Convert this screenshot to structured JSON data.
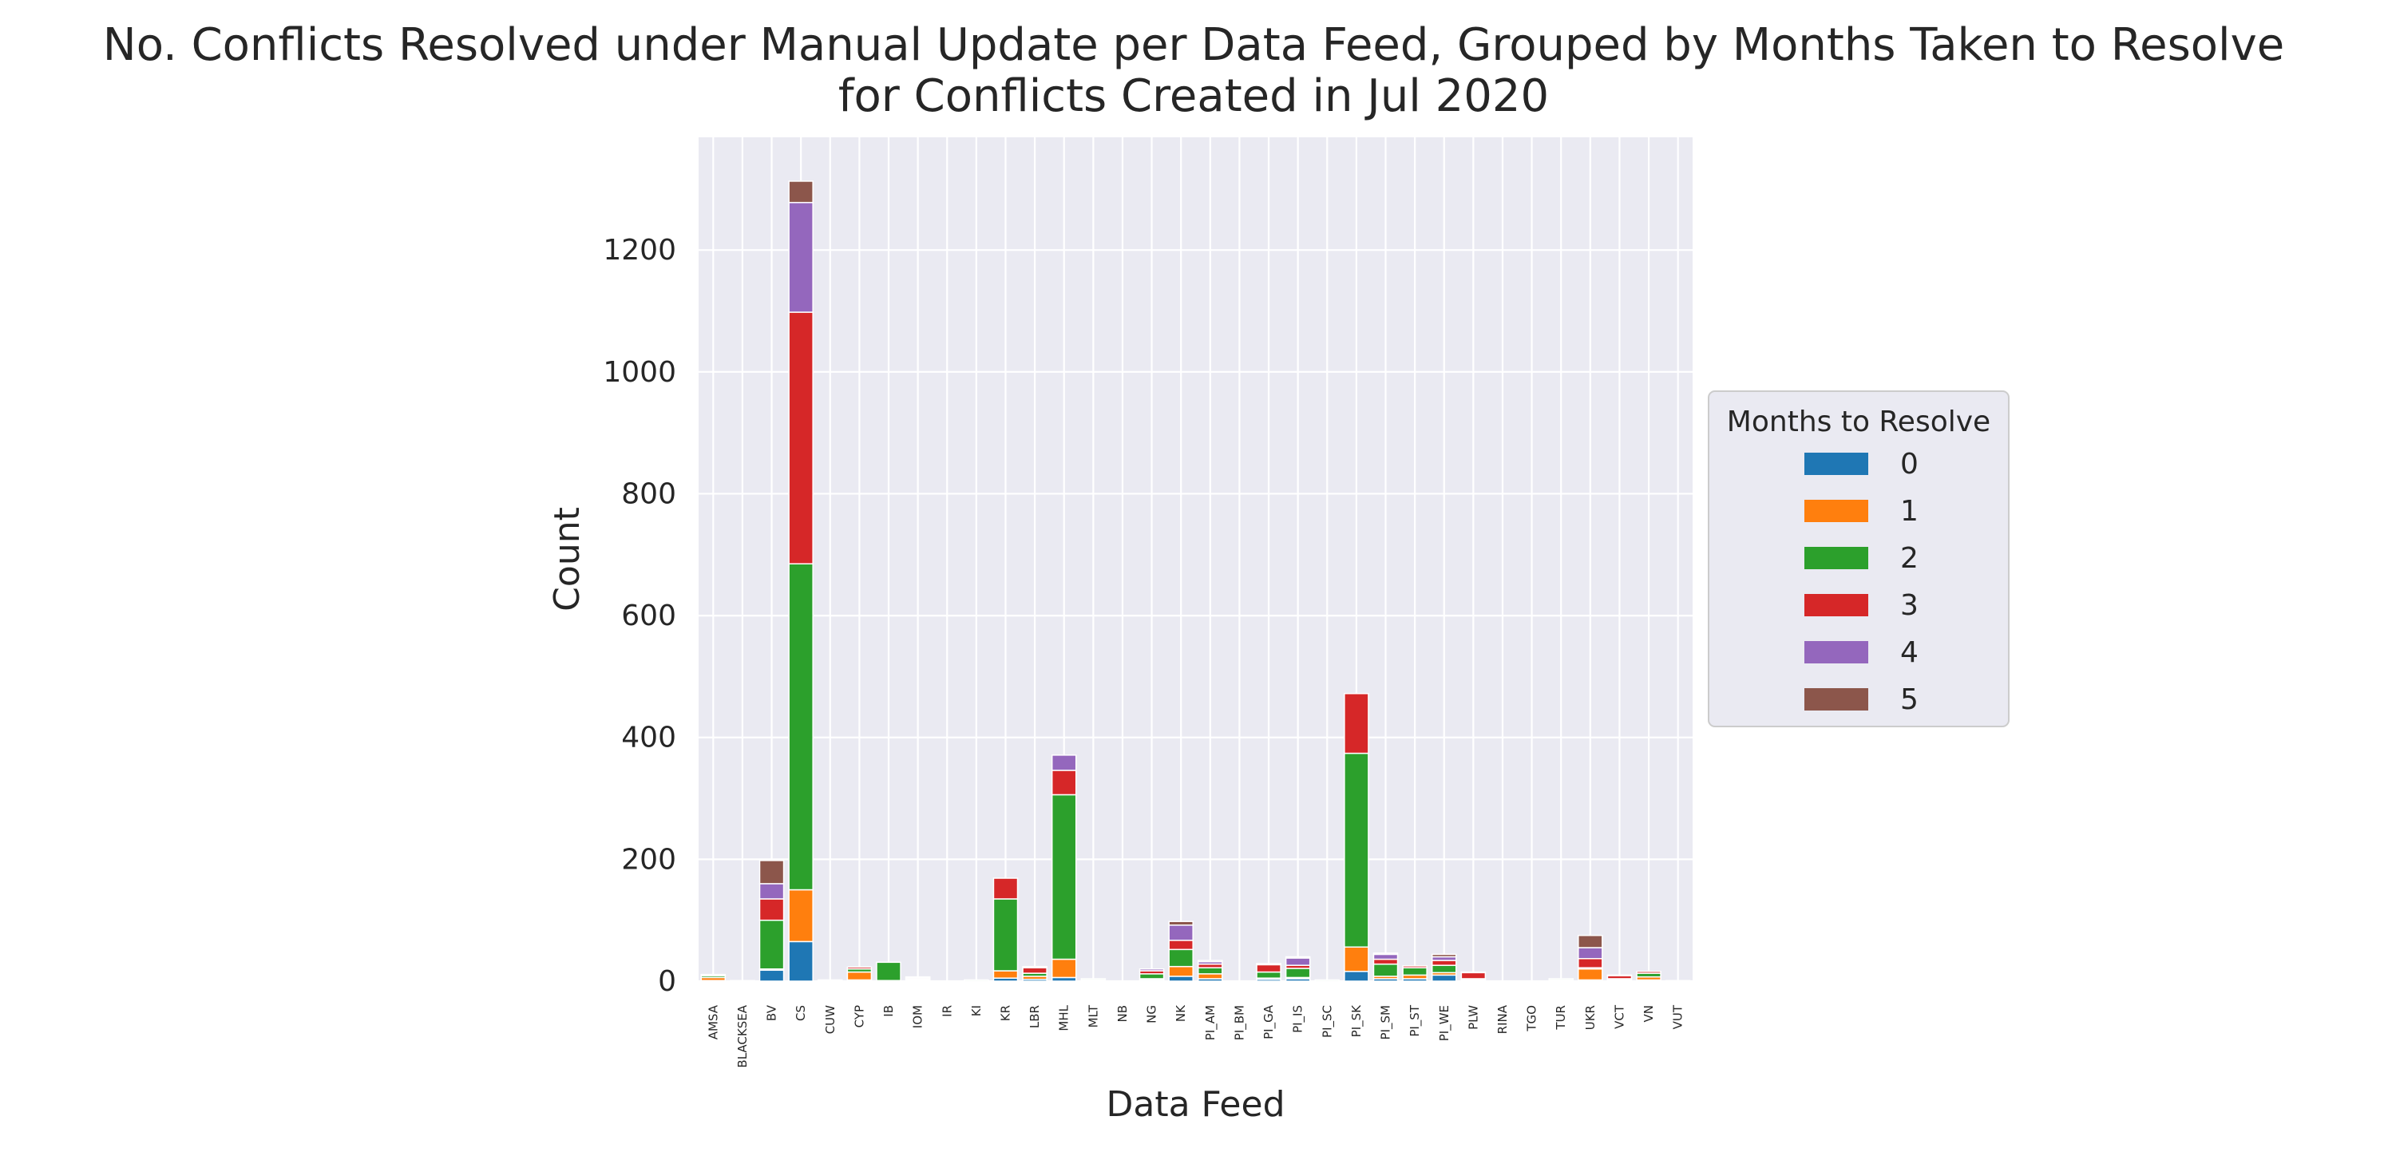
{
  "chart_data": {
    "type": "bar",
    "stacked": true,
    "title": "No. Conflicts Resolved under Manual Update per Data Feed, Grouped by Months Taken to Resolve\nfor Conflicts Created in Jul 2020",
    "xlabel": "Data Feed",
    "ylabel": "Count",
    "ylim": [
      0,
      1385
    ],
    "yticks": [
      0,
      200,
      400,
      600,
      800,
      1000,
      1200
    ],
    "grid": true,
    "legend": {
      "title": "Months to Resolve",
      "placement": "outside-right"
    },
    "categories": [
      "AMSA",
      "BLACKSEA",
      "BV",
      "CS",
      "CUW",
      "CYP",
      "IB",
      "IOM",
      "IR",
      "KI",
      "KR",
      "LBR",
      "MHL",
      "MLT",
      "NB",
      "NG",
      "NK",
      "PI_AM",
      "PI_BM",
      "PI_GA",
      "PI_IS",
      "PI_SC",
      "PI_SK",
      "PI_SM",
      "PI_ST",
      "PI_WE",
      "PLW",
      "RINA",
      "TGO",
      "TUR",
      "UKR",
      "VCT",
      "VN",
      "VUT"
    ],
    "series": [
      {
        "name": "0",
        "color": "#1f77b4",
        "values": [
          1,
          0,
          18,
          65,
          0,
          2,
          0,
          0,
          0,
          0,
          5,
          3,
          6,
          1,
          0,
          2,
          8,
          4,
          0,
          3,
          4,
          0,
          16,
          4,
          4,
          10,
          1,
          0,
          0,
          1,
          2,
          1,
          2,
          1
        ]
      },
      {
        "name": "1",
        "color": "#ff7f0e",
        "values": [
          5,
          0,
          2,
          85,
          1,
          13,
          1,
          1,
          0,
          0,
          12,
          5,
          30,
          1,
          0,
          2,
          16,
          8,
          0,
          2,
          2,
          0,
          40,
          4,
          6,
          4,
          1,
          0,
          0,
          1,
          18,
          1,
          5,
          0
        ]
      },
      {
        "name": "2",
        "color": "#2ca02c",
        "values": [
          3,
          1,
          80,
          535,
          1,
          5,
          30,
          2,
          0,
          2,
          118,
          5,
          270,
          2,
          0,
          8,
          28,
          10,
          0,
          10,
          15,
          2,
          318,
          20,
          12,
          12,
          2,
          0,
          0,
          2,
          2,
          2,
          6,
          0
        ]
      },
      {
        "name": "3",
        "color": "#d62728",
        "values": [
          1,
          0,
          35,
          413,
          0,
          3,
          0,
          1,
          0,
          0,
          34,
          9,
          40,
          0,
          0,
          5,
          15,
          6,
          0,
          12,
          5,
          0,
          98,
          8,
          3,
          8,
          10,
          0,
          0,
          0,
          15,
          5,
          3,
          0
        ]
      },
      {
        "name": "4",
        "color": "#9467bd",
        "values": [
          1,
          0,
          25,
          180,
          0,
          0,
          0,
          2,
          0,
          0,
          0,
          2,
          25,
          0,
          0,
          3,
          25,
          4,
          0,
          2,
          12,
          0,
          0,
          8,
          0,
          6,
          0,
          0,
          0,
          0,
          18,
          1,
          0,
          0
        ]
      },
      {
        "name": "5",
        "color": "#8c564b",
        "values": [
          0,
          0,
          38,
          35,
          0,
          0,
          0,
          1,
          0,
          0,
          0,
          0,
          0,
          0,
          0,
          0,
          6,
          2,
          0,
          0,
          2,
          0,
          0,
          2,
          0,
          4,
          1,
          0,
          0,
          0,
          20,
          0,
          0,
          0
        ]
      }
    ]
  }
}
